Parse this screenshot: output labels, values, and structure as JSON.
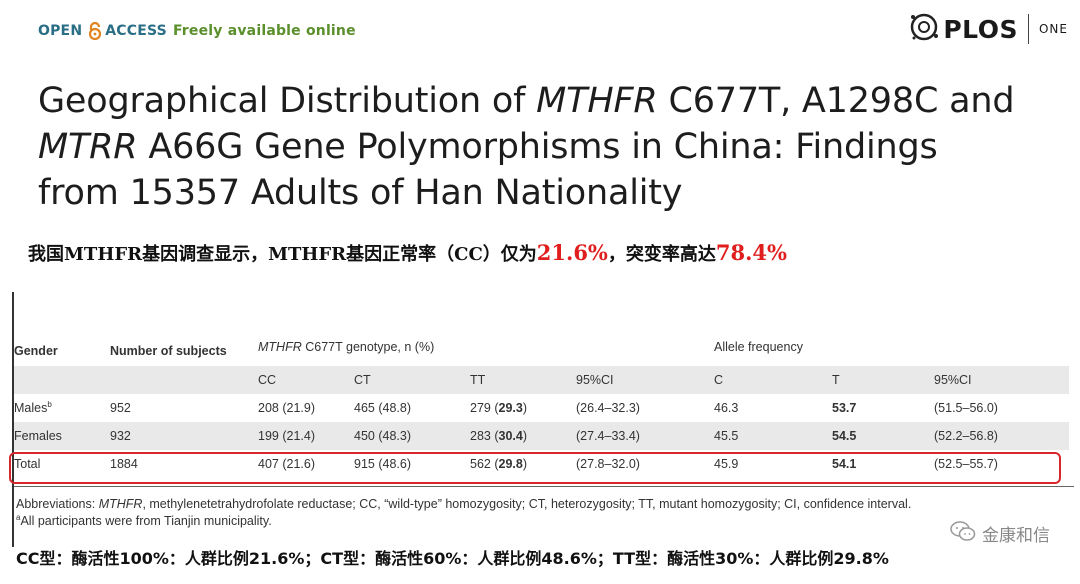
{
  "header": {
    "open": "OPEN",
    "access": "ACCESS",
    "freely": "Freely available online",
    "plos": "PLOS",
    "one": "ONE"
  },
  "title": {
    "p1": "Geographical Distribution of ",
    "g1": "MTHFR",
    "p2": " C677T, A1298C and",
    "g2": "MTRR",
    "p3": " A66G Gene Polymorphisms in China: Findings",
    "p4": "from 15357 Adults of Han Nationality"
  },
  "banner": {
    "text1": "我国MTHFR基因调查显示，MTHFR基因正常率（CC）仅为",
    "val1": "21.6%",
    "text2": "，突变率高达",
    "val2": "78.4%"
  },
  "table": {
    "h_gender": "Gender",
    "h_subjects": "Number of subjects",
    "h_geno_gene": "MTHFR",
    "h_geno_rest": " C677T genotype, n (%)",
    "h_allele": "Allele frequency",
    "sub": [
      "CC",
      "CT",
      "TT",
      "95%CI",
      "C",
      "T",
      "95%CI"
    ],
    "rows": [
      {
        "gender": "Males",
        "sup": "b",
        "n": "952",
        "cc": "208 (21.9)",
        "ct": "465 (48.8)",
        "tt_n": "279 (",
        "tt_b": "29.3",
        "tt_e": ")",
        "ci1": "(26.4–32.3)",
        "c": "46.3",
        "t": "53.7",
        "ci2": "(51.5–56.0)"
      },
      {
        "gender": "Females",
        "sup": "",
        "n": "932",
        "cc": "199 (21.4)",
        "ct": "450 (48.3)",
        "tt_n": "283 (",
        "tt_b": "30.4",
        "tt_e": ")",
        "ci1": "(27.4–33.4)",
        "c": "45.5",
        "t": "54.5",
        "ci2": "(52.2–56.8)"
      },
      {
        "gender": "Total",
        "sup": "",
        "n": "1884",
        "cc": "407 (21.6)",
        "ct": "915 (48.6)",
        "tt_n": "562 (",
        "tt_b": "29.8",
        "tt_e": ")",
        "ci1": "(27.8–32.0)",
        "c": "45.9",
        "t": "54.1",
        "ci2": "(52.5–55.7)"
      }
    ]
  },
  "abbr": {
    "lead": "Abbreviations: ",
    "gene": "MTHFR",
    "rest": ", methylenetetrahydrofolate reductase; CC, “wild-type” homozygosity; CT, heterozygosity; TT, mutant homozygosity; CI, confidence interval.",
    "sup": "a",
    "note": "All participants were from Tianjin municipality."
  },
  "footer": "CC型：酶活性100%：人群比例21.6%；CT型：酶活性60%：人群比例48.6%；TT型：酶活性30%：人群比例29.8%",
  "watermark": "金康和信",
  "colors": {
    "red": "#e01e1e",
    "teal": "#2a6e86",
    "green": "#5a8f2c",
    "highlight": "#d8262d"
  }
}
